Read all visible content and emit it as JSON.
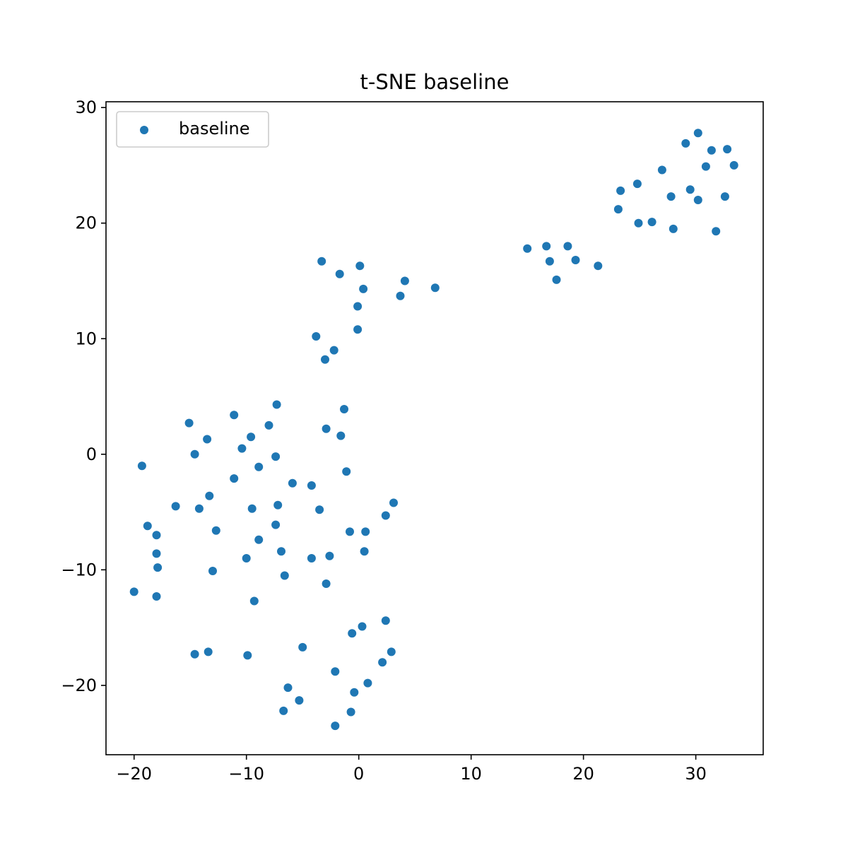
{
  "chart_data": {
    "type": "scatter",
    "title": "t-SNE baseline",
    "xlabel": "",
    "ylabel": "",
    "xlim": [
      -22.5,
      36
    ],
    "ylim": [
      -26,
      30.5
    ],
    "xticks": [
      -20,
      -10,
      0,
      10,
      20,
      30
    ],
    "xtick_labels": [
      "−20",
      "−10",
      "0",
      "10",
      "20",
      "30"
    ],
    "yticks": [
      -20,
      -10,
      0,
      10,
      20,
      30
    ],
    "ytick_labels": [
      "−20",
      "−10",
      "0",
      "10",
      "20",
      "30"
    ],
    "grid": false,
    "legend": {
      "placement": "top-left",
      "entries": [
        "baseline"
      ]
    },
    "series": [
      {
        "name": "baseline",
        "color": "#1f77b4",
        "points": [
          [
            -20.0,
            -11.9
          ],
          [
            -19.3,
            -1.0
          ],
          [
            -18.8,
            -6.2
          ],
          [
            -18.0,
            -7.0
          ],
          [
            -18.0,
            -8.6
          ],
          [
            -17.9,
            -9.8
          ],
          [
            -18.0,
            -12.3
          ],
          [
            -16.3,
            -4.5
          ],
          [
            -15.1,
            2.7
          ],
          [
            -14.6,
            0.0
          ],
          [
            -14.2,
            -4.7
          ],
          [
            -13.5,
            1.3
          ],
          [
            -13.3,
            -3.6
          ],
          [
            -13.0,
            -10.1
          ],
          [
            -12.7,
            -6.6
          ],
          [
            -14.6,
            -17.3
          ],
          [
            -13.4,
            -17.1
          ],
          [
            -11.1,
            3.4
          ],
          [
            -11.1,
            -2.1
          ],
          [
            -10.4,
            0.5
          ],
          [
            -10.0,
            -9.0
          ],
          [
            -9.6,
            1.5
          ],
          [
            -9.5,
            -4.7
          ],
          [
            -9.9,
            -17.4
          ],
          [
            -9.3,
            -12.7
          ],
          [
            -8.9,
            -1.1
          ],
          [
            -8.9,
            -7.4
          ],
          [
            -8.0,
            2.5
          ],
          [
            -7.3,
            4.3
          ],
          [
            -7.4,
            -0.2
          ],
          [
            -7.2,
            -4.4
          ],
          [
            -7.4,
            -6.1
          ],
          [
            -6.9,
            -8.4
          ],
          [
            -6.6,
            -10.5
          ],
          [
            -6.3,
            -20.2
          ],
          [
            -6.7,
            -22.2
          ],
          [
            -5.9,
            -2.5
          ],
          [
            -5.3,
            -21.3
          ],
          [
            -5.0,
            -16.7
          ],
          [
            -4.2,
            -2.7
          ],
          [
            -4.2,
            -9.0
          ],
          [
            -3.5,
            -4.8
          ],
          [
            -3.3,
            16.7
          ],
          [
            -3.8,
            10.2
          ],
          [
            -3.0,
            8.2
          ],
          [
            -2.9,
            2.2
          ],
          [
            -2.9,
            -11.2
          ],
          [
            -2.6,
            -8.8
          ],
          [
            -2.2,
            9.0
          ],
          [
            -2.1,
            -18.8
          ],
          [
            -2.1,
            -23.5
          ],
          [
            -1.7,
            15.6
          ],
          [
            -1.6,
            1.6
          ],
          [
            -1.3,
            3.9
          ],
          [
            -1.1,
            -1.5
          ],
          [
            -0.8,
            -6.7
          ],
          [
            -0.7,
            -22.3
          ],
          [
            -0.6,
            -15.5
          ],
          [
            -0.4,
            -20.6
          ],
          [
            -0.1,
            12.8
          ],
          [
            -0.1,
            10.8
          ],
          [
            0.1,
            16.3
          ],
          [
            0.3,
            -14.9
          ],
          [
            0.4,
            14.3
          ],
          [
            0.5,
            -8.4
          ],
          [
            0.6,
            -6.7
          ],
          [
            0.8,
            -19.8
          ],
          [
            2.1,
            -18.0
          ],
          [
            2.4,
            -14.4
          ],
          [
            2.4,
            -5.3
          ],
          [
            2.9,
            -17.1
          ],
          [
            3.1,
            -4.2
          ],
          [
            3.7,
            13.7
          ],
          [
            4.1,
            15.0
          ],
          [
            6.8,
            14.4
          ],
          [
            15.0,
            17.8
          ],
          [
            16.7,
            18.0
          ],
          [
            17.0,
            16.7
          ],
          [
            17.6,
            15.1
          ],
          [
            18.6,
            18.0
          ],
          [
            19.3,
            16.8
          ],
          [
            21.3,
            16.3
          ],
          [
            23.1,
            21.2
          ],
          [
            23.3,
            22.8
          ],
          [
            24.8,
            23.4
          ],
          [
            24.9,
            20.0
          ],
          [
            26.1,
            20.1
          ],
          [
            27.0,
            24.6
          ],
          [
            27.8,
            22.3
          ],
          [
            28.0,
            19.5
          ],
          [
            29.1,
            26.9
          ],
          [
            29.5,
            22.9
          ],
          [
            30.2,
            27.8
          ],
          [
            30.2,
            22.0
          ],
          [
            30.9,
            24.9
          ],
          [
            31.4,
            26.3
          ],
          [
            31.8,
            19.3
          ],
          [
            32.6,
            22.3
          ],
          [
            32.8,
            26.4
          ],
          [
            33.4,
            25.0
          ]
        ]
      }
    ]
  }
}
